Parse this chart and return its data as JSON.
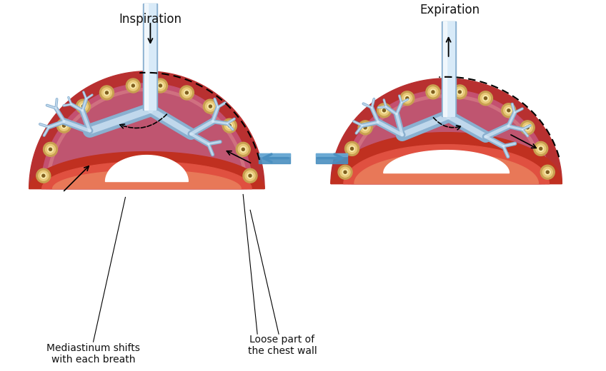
{
  "bg_color": "#ffffff",
  "chest_wall_color": "#b83030",
  "lung_tissue_color": "#c45070",
  "lung_dark_color": "#b04060",
  "pleura_color": "#e08898",
  "airway_fill": "#b8d0e8",
  "airway_edge": "#8ab0d0",
  "airway_light": "#d8eaf8",
  "diaphragm_outer": "#c03020",
  "diaphragm_inner": "#e05040",
  "diaphragm_light": "#f07858",
  "rib_outer": "#c8a050",
  "rib_mid": "#e8c878",
  "rib_inner": "#f8e8a8",
  "rib_dark": "#806020",
  "arrow_color": "#111111",
  "blue_arrow": "#4a8fc0",
  "blue_arrow_light": "#7ab8e0",
  "title_left": "Inspiration",
  "title_right": "Expiration",
  "label_mediastinum": "Mediastinum shifts\nwith each breath",
  "label_loose": "Loose part of\nthe chest wall",
  "text_color": "#111111",
  "title_fontsize": 12,
  "label_fontsize": 10
}
